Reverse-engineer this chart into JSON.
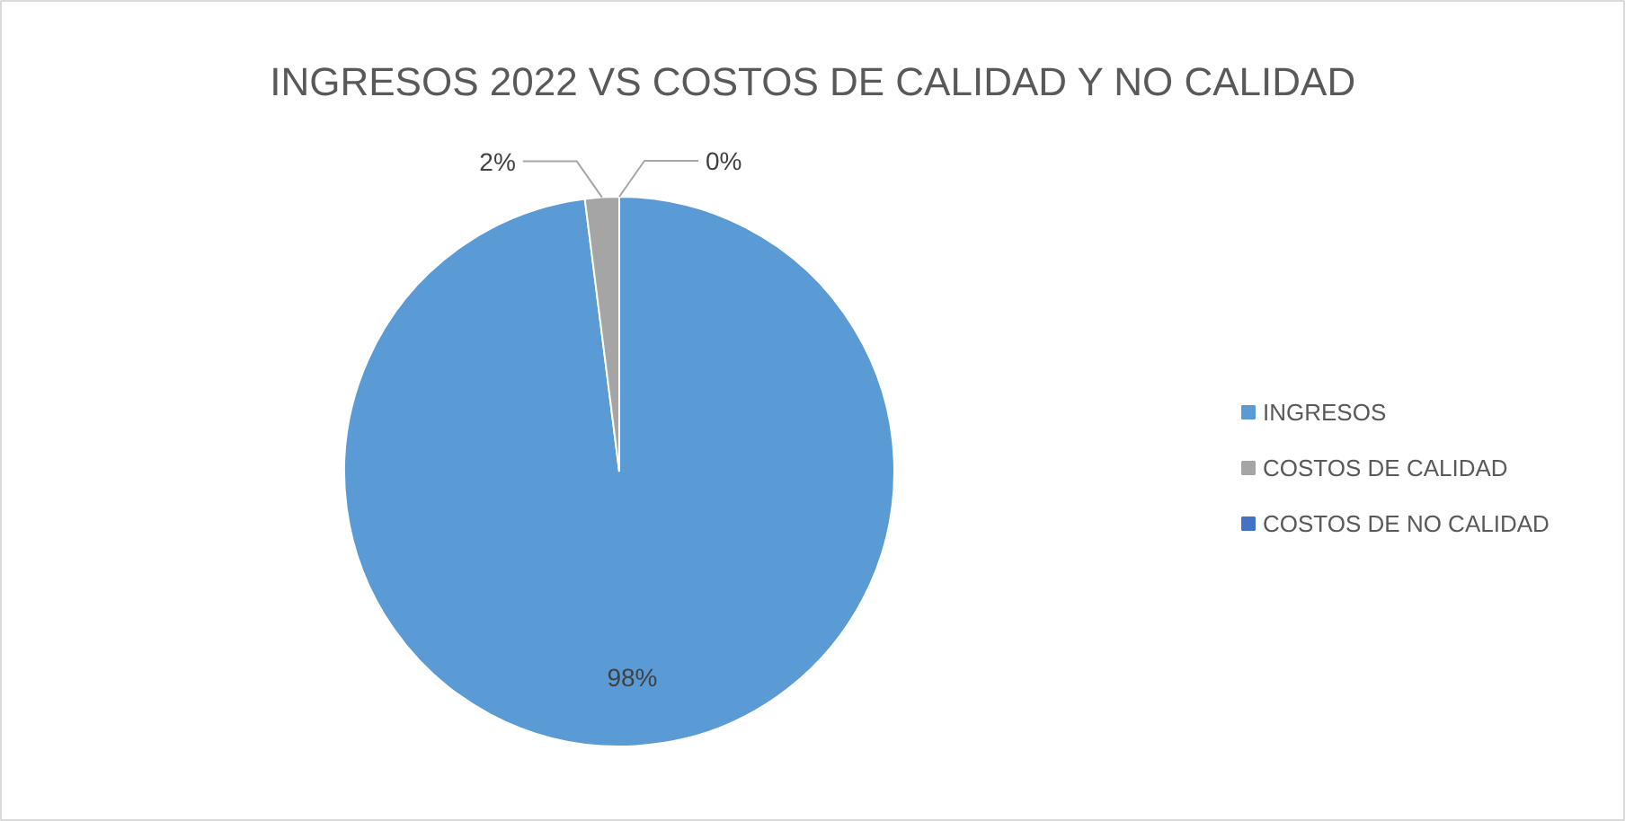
{
  "chart_data": {
    "type": "pie",
    "title": "INGRESOS 2022 VS COSTOS DE CALIDAD Y NO CALIDAD",
    "categories": [
      "INGRESOS",
      "COSTOS DE CALIDAD",
      "COSTOS DE NO CALIDAD"
    ],
    "values": [
      98,
      2,
      0
    ],
    "colors": [
      "#5b9bd5",
      "#a5a5a5",
      "#4472c4"
    ],
    "value_labels": [
      "98%",
      "2%",
      "0%"
    ],
    "legend": "right"
  }
}
